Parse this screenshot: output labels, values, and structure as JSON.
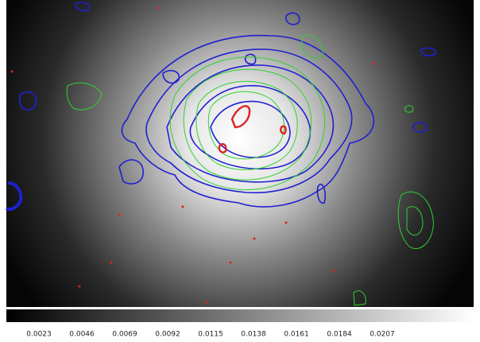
{
  "colorbar": {
    "ticks": [
      0.0023,
      0.0046,
      0.0069,
      0.0092,
      0.0115,
      0.0138,
      0.0161,
      0.0184,
      0.0207
    ]
  }
}
